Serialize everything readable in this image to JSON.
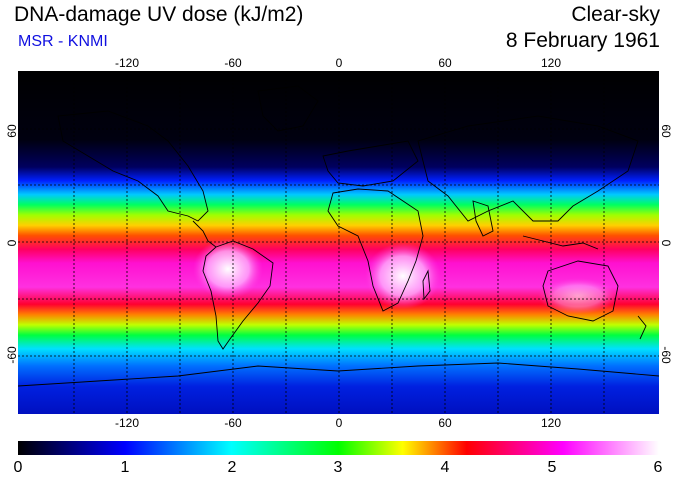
{
  "header": {
    "title": "DNA-damage UV dose (kJ/m2)",
    "source": "MSR - KNMI",
    "condition": "Clear-sky",
    "date": "8 February 1961"
  },
  "map": {
    "lon_ticks": [
      "-120",
      "-60",
      "0",
      "60",
      "120"
    ],
    "lat_ticks": [
      "60",
      "0",
      "-60"
    ]
  },
  "colorbar": {
    "labels": [
      "0",
      "1",
      "2",
      "3",
      "4",
      "5",
      "6"
    ],
    "colors": [
      "#000000",
      "#0000ff",
      "#00ffff",
      "#00ff00",
      "#ffff00",
      "#ff0000",
      "#ff00ff",
      "#ffffff"
    ]
  }
}
